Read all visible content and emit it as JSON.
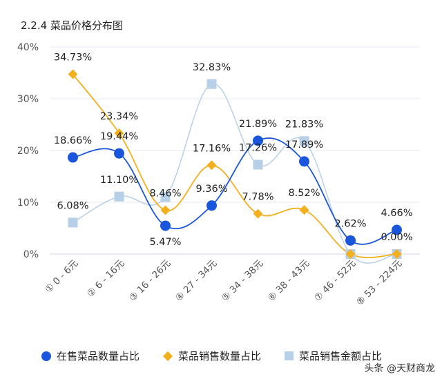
{
  "title": "2.2.4 菜品价格分布图",
  "watermark": "头条 @天财商龙",
  "chart_data": {
    "type": "line",
    "categories": [
      "① 0 - 6元",
      "② 6 - 16元",
      "③ 16 - 26元",
      "④ 27 - 34元",
      "⑤ 34 - 38元",
      "⑥ 38 - 43元",
      "⑦ 46 - 52元",
      "⑧ 53 - 224元"
    ],
    "ylim": [
      0,
      40
    ],
    "yticks": [
      "0%",
      "10%",
      "20%",
      "30%",
      "40%"
    ],
    "ytick_values": [
      0,
      10,
      20,
      30,
      40
    ],
    "grid": true,
    "smooth": true,
    "legend_position": "bottom",
    "series": [
      {
        "name": "在售菜品数量占比",
        "values": [
          18.66,
          19.44,
          5.47,
          9.36,
          21.89,
          17.89,
          2.62,
          4.66
        ],
        "labels": [
          "18.66%",
          "19.44%",
          "5.47%",
          "9.36%",
          "21.89%",
          "17.89%",
          "2.62%",
          "4.66%"
        ],
        "color": "#1a56db",
        "marker": "circle"
      },
      {
        "name": "菜品销售数量占比",
        "values": [
          34.73,
          23.34,
          8.46,
          17.16,
          7.78,
          8.52,
          0,
          0
        ],
        "labels": [
          "34.73%",
          "23.34%",
          "8.46%",
          "17.16%",
          "7.78%",
          "8.52%",
          "",
          ""
        ],
        "color": "#f2b01e",
        "marker": "diamond"
      },
      {
        "name": "菜品销售金额占比",
        "values": [
          6.08,
          11.1,
          11.0,
          32.83,
          17.26,
          21.83,
          0,
          0
        ],
        "labels": [
          "6.08%",
          "11.10%",
          "",
          "32.83%",
          "17.26%",
          "21.83%",
          "",
          "0.00%"
        ],
        "color": "#b8cfe8",
        "marker": "square"
      }
    ]
  }
}
